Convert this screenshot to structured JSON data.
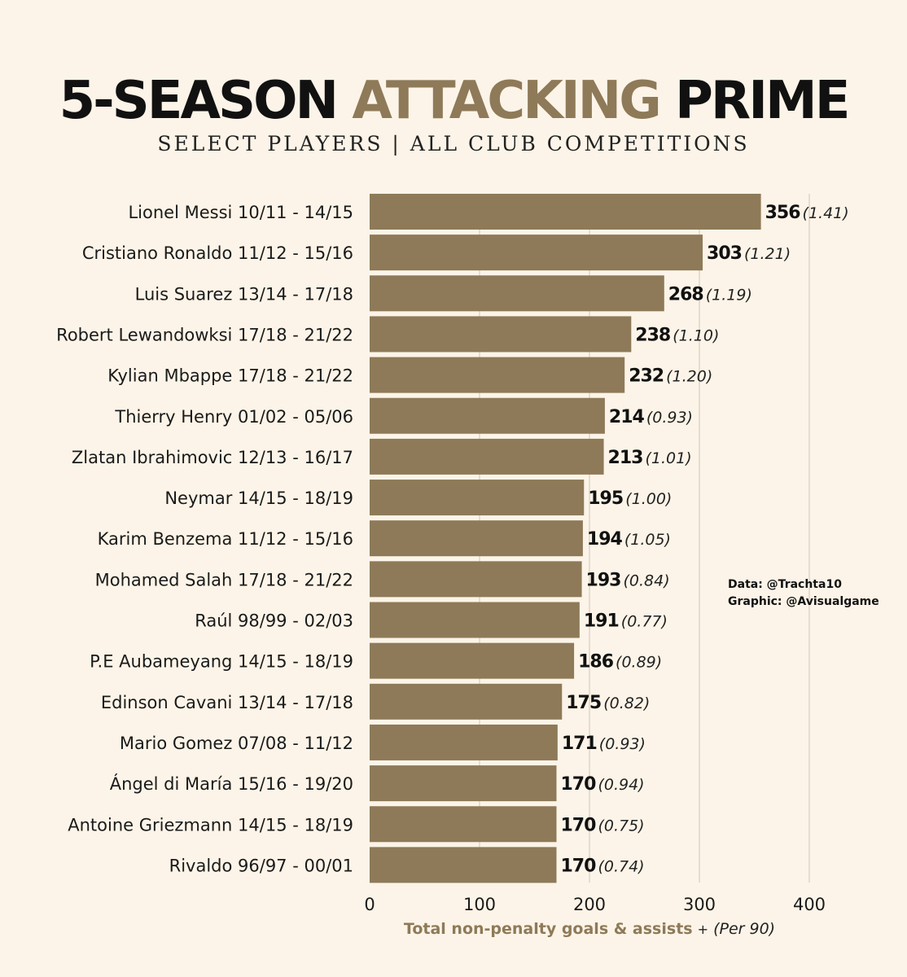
{
  "title": {
    "part1": "5-SEASON",
    "part2": "ATTACKING",
    "part3": "PRIME"
  },
  "subtitle": "SELECT PLAYERS  |  ALL CLUB COMPETITIONS",
  "colors": {
    "background": "#fcf4e8",
    "bar": "#8e7a58",
    "accent": "#8e7a58",
    "grid": "#ddd5c8"
  },
  "credits": {
    "data": "Data: @Trachta10",
    "graphic": "Graphic: @Avisualgame"
  },
  "chart_data": {
    "type": "bar",
    "orientation": "horizontal",
    "categories": [
      "Lionel Messi 10/11 - 14/15",
      "Cristiano Ronaldo 11/12 - 15/16",
      "Luis Suarez 13/14 - 17/18",
      "Robert Lewandowksi 17/18 - 21/22",
      "Kylian Mbappe 17/18 - 21/22",
      "Thierry Henry 01/02 - 05/06",
      "Zlatan Ibrahimovic 12/13 - 16/17",
      "Neymar 14/15 - 18/19",
      "Karim Benzema 11/12 - 15/16",
      "Mohamed Salah 17/18 - 21/22",
      "Raúl 98/99 - 02/03",
      "P.E Aubameyang 14/15 - 18/19",
      "Edinson Cavani 13/14 - 17/18",
      "Mario Gomez 07/08 - 11/12",
      "Ángel di María 15/16 - 19/20",
      "Antoine Griezmann 14/15 - 18/19",
      "Rivaldo 96/97 - 00/01"
    ],
    "values": [
      356,
      303,
      268,
      238,
      232,
      214,
      213,
      195,
      194,
      193,
      191,
      186,
      175,
      171,
      170,
      170,
      170
    ],
    "per90": [
      "(1.41)",
      "(1.21)",
      "(1.19)",
      "(1.10)",
      "(1.20)",
      "(0.93)",
      "(1.01)",
      "(1.00)",
      "(1.05)",
      "(0.84)",
      "(0.77)",
      "(0.89)",
      "(0.82)",
      "(0.93)",
      "(0.94)",
      "(0.75)",
      "(0.74)"
    ],
    "xlim": [
      0,
      400
    ],
    "xticks": [
      0,
      100,
      200,
      300,
      400
    ],
    "xlabel": "Total non-penalty goals & assists",
    "xlabel_plus": "+",
    "xlabel_sub": "(Per 90)",
    "grid": true
  }
}
